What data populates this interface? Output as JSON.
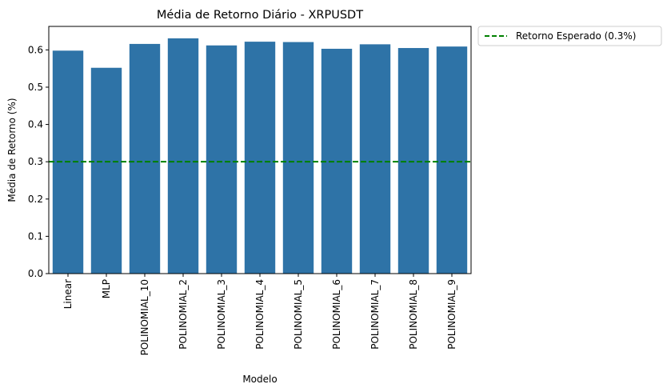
{
  "chart_data": {
    "type": "bar",
    "title": "Média de Retorno Diário - XRPUSDT",
    "xlabel": "Modelo",
    "ylabel": "Média de Retorno (%)",
    "categories": [
      "Linear",
      "MLP",
      "POLINOMIAL_10",
      "POLINOMIAL_2",
      "POLINOMIAL_3",
      "POLINOMIAL_4",
      "POLINOMIAL_5",
      "POLINOMIAL_6",
      "POLINOMIAL_7",
      "POLINOMIAL_8",
      "POLINOMIAL_9"
    ],
    "values": [
      0.598,
      0.552,
      0.616,
      0.631,
      0.612,
      0.622,
      0.621,
      0.603,
      0.615,
      0.605,
      0.609
    ],
    "ylim": [
      0,
      0.663
    ],
    "yticks": [
      0.0,
      0.1,
      0.2,
      0.3,
      0.4,
      0.5,
      0.6
    ],
    "ytick_labels": [
      "0.0",
      "0.1",
      "0.2",
      "0.3",
      "0.4",
      "0.5",
      "0.6"
    ],
    "grid": false,
    "bar_color": "#2e73a7",
    "reference_line": {
      "value": 0.3,
      "label": "Retorno Esperado (0.3%)",
      "color": "#008000",
      "style": "dashed"
    },
    "legend": {
      "placement": "outside-top-right",
      "entries": [
        "Retorno Esperado (0.3%)"
      ]
    }
  }
}
